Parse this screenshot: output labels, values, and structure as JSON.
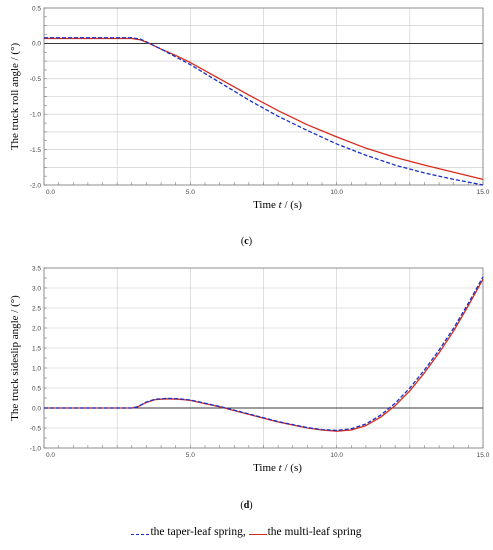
{
  "chart_data": [
    {
      "type": "line",
      "panel": "(c)",
      "panel_letter": "c",
      "xlabel_main": "Time ",
      "xlabel_var": "t",
      "xlabel_unit": " / (s)",
      "ylabel": "The truck roll angle / (°)",
      "xlim": [
        0,
        15
      ],
      "ylim": [
        -2.0,
        0.5
      ],
      "xticks": [
        "0.0",
        "5.0",
        "10.0",
        "15.0"
      ],
      "yticks": [
        "0.5",
        "0.0",
        "-0.5",
        "-1.0",
        "-1.5",
        "-2.0"
      ],
      "grid": true,
      "series": [
        {
          "name": "the taper-leaf spring",
          "color": "#1a2fc4",
          "style": "dashed",
          "x": [
            0,
            1,
            2,
            3,
            3.3,
            3.6,
            4,
            4.5,
            5,
            6,
            7,
            8,
            9,
            10,
            11,
            12,
            13,
            14,
            15
          ],
          "y": [
            0.08,
            0.08,
            0.08,
            0.08,
            0.06,
            0.0,
            -0.08,
            -0.19,
            -0.3,
            -0.55,
            -0.8,
            -1.03,
            -1.23,
            -1.42,
            -1.58,
            -1.72,
            -1.83,
            -1.92,
            -2.0
          ]
        },
        {
          "name": "the multi-leaf spring",
          "color": "#d62b1e",
          "style": "solid",
          "x": [
            0,
            1,
            2,
            3,
            3.3,
            3.6,
            4,
            4.5,
            5,
            6,
            7,
            8,
            9,
            10,
            11,
            12,
            13,
            14,
            15
          ],
          "y": [
            0.07,
            0.07,
            0.07,
            0.07,
            0.05,
            0.0,
            -0.08,
            -0.17,
            -0.27,
            -0.5,
            -0.73,
            -0.95,
            -1.15,
            -1.32,
            -1.48,
            -1.61,
            -1.72,
            -1.82,
            -1.92
          ]
        }
      ]
    },
    {
      "type": "line",
      "panel": "(d)",
      "panel_letter": "d",
      "xlabel_main": "Time ",
      "xlabel_var": "t",
      "xlabel_unit": " / (s)",
      "ylabel": "The truck sideslip angle / (°)",
      "xlim": [
        0,
        15
      ],
      "ylim": [
        -1.0,
        3.5
      ],
      "xticks": [
        "0.0",
        "5.0",
        "10.0",
        "15.0"
      ],
      "yticks": [
        "3.5",
        "3.0",
        "2.5",
        "2.0",
        "1.5",
        "1.0",
        "0.5",
        "0.0",
        "-0.5",
        "-1.0"
      ],
      "grid": true,
      "series": [
        {
          "name": "the taper-leaf spring",
          "color": "#1a2fc4",
          "style": "dashed",
          "x": [
            0,
            1,
            2,
            3,
            3.2,
            3.5,
            3.8,
            4.2,
            4.6,
            5,
            5.5,
            6,
            7,
            8,
            9,
            9.5,
            10,
            10.5,
            11,
            11.5,
            12,
            12.5,
            13,
            13.5,
            14,
            14.5,
            15
          ],
          "y": [
            0,
            0,
            0,
            0,
            0.03,
            0.15,
            0.22,
            0.24,
            0.23,
            0.2,
            0.12,
            0.04,
            -0.15,
            -0.34,
            -0.49,
            -0.54,
            -0.56,
            -0.52,
            -0.4,
            -0.18,
            0.12,
            0.5,
            0.95,
            1.45,
            2.0,
            2.62,
            3.28
          ]
        },
        {
          "name": "the multi-leaf spring",
          "color": "#d62b1e",
          "style": "solid",
          "x": [
            0,
            1,
            2,
            3,
            3.2,
            3.5,
            3.8,
            4.2,
            4.6,
            5,
            5.5,
            6,
            7,
            8,
            9,
            9.5,
            10,
            10.5,
            11,
            11.5,
            12,
            12.5,
            13,
            13.5,
            14,
            14.5,
            15
          ],
          "y": [
            0,
            0,
            0,
            0,
            0.03,
            0.14,
            0.21,
            0.23,
            0.22,
            0.19,
            0.11,
            0.03,
            -0.16,
            -0.35,
            -0.5,
            -0.55,
            -0.58,
            -0.55,
            -0.44,
            -0.23,
            0.06,
            0.43,
            0.88,
            1.38,
            1.93,
            2.56,
            3.22
          ]
        }
      ]
    }
  ],
  "legend": {
    "taper_label": "the taper-leaf spring,",
    "multi_label": "the multi-leaf spring"
  }
}
